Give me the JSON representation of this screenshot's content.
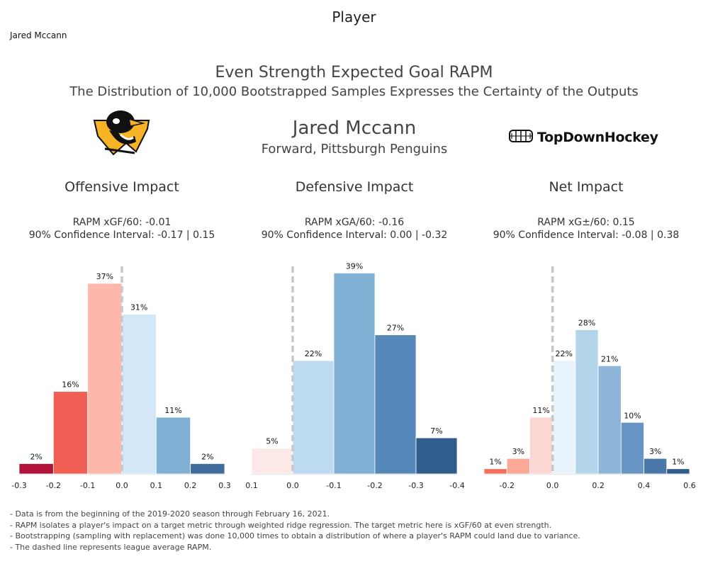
{
  "page": {
    "title": "Player",
    "player_select": "Jared Mccann",
    "main_title": "Even Strength Expected Goal RAPM",
    "subtitle": "The Distribution of 10,000 Bootstrapped Samples Expresses the Certainty of the Outputs",
    "player_name": "Jared Mccann",
    "player_role": "Forward, Pittsburgh Penguins",
    "brand": "TopDownHockey"
  },
  "colors": {
    "reds": [
      "#b01238",
      "#f05e54",
      "#fdb8ab",
      "#fde1df",
      "#fbd6d3"
    ],
    "blues": [
      "#d3e7f7",
      "#80b1d5",
      "#3c6fa3",
      "#2b5a8a"
    ]
  },
  "panels": [
    {
      "title": "Offensive Impact",
      "stat_line": "RAPM xGF/60: -0.01",
      "ci_line": "90% Confidence Interval: -0.17 | 0.15"
    },
    {
      "title": "Defensive Impact",
      "stat_line": "RAPM xGA/60: -0.16",
      "ci_line": "90% Confidence Interval:  0.00 | -0.32"
    },
    {
      "title": "Net Impact",
      "stat_line": "RAPM xG±/60: 0.15",
      "ci_line": "90% Confidence Interval: -0.08 | 0.38"
    }
  ],
  "chart_data": [
    {
      "type": "bar",
      "title": "Offensive Impact",
      "bin_edges": [
        -0.3,
        -0.2,
        -0.1,
        0.0,
        0.1,
        0.2,
        0.3
      ],
      "values": [
        2,
        16,
        37,
        31,
        11,
        2
      ],
      "labels": [
        "2%",
        "16%",
        "37%",
        "31%",
        "11%",
        "2%"
      ],
      "colors": [
        "#b01238",
        "#f05e54",
        "#fdb8ab",
        "#d3e7f7",
        "#80b1d5",
        "#3f6e9e"
      ],
      "xticks": [
        "-0.3",
        "-0.2",
        "-0.1",
        "0.0",
        "0.1",
        "0.2",
        "0.3"
      ],
      "reference_line": 0.0,
      "reversed_axis": false
    },
    {
      "type": "bar",
      "title": "Defensive Impact",
      "bin_edges": [
        0.1,
        0.0,
        -0.1,
        -0.2,
        -0.3,
        -0.4
      ],
      "values": [
        5,
        22,
        39,
        27,
        7
      ],
      "labels": [
        "5%",
        "22%",
        "39%",
        "27%",
        "7%"
      ],
      "colors": [
        "#fde8e8",
        "#bcdaf0",
        "#80b1d5",
        "#5588b8",
        "#2f5d8c"
      ],
      "xticks": [
        "0.1",
        "0.0",
        "-0.1",
        "-0.2",
        "-0.3",
        "-0.4"
      ],
      "reference_line": 0.0,
      "reversed_axis": true
    },
    {
      "type": "bar",
      "title": "Net Impact",
      "bin_edges": [
        -0.3,
        -0.2,
        -0.1,
        0.0,
        0.1,
        0.2,
        0.3,
        0.4,
        0.5,
        0.6
      ],
      "values": [
        1,
        3,
        11,
        22,
        28,
        21,
        10,
        3,
        1
      ],
      "labels": [
        "1%",
        "3%",
        "11%",
        "22%",
        "28%",
        "21%",
        "10%",
        "3%",
        "1%"
      ],
      "colors": [
        "#f26f5c",
        "#fca896",
        "#fdd7d4",
        "#e9f3fb",
        "#b4d4ea",
        "#8cb5d8",
        "#6795c4",
        "#4a78aa",
        "#2f5d8c"
      ],
      "xticks": [
        "-0.2",
        "0.0",
        "0.2",
        "0.4",
        "0.6"
      ],
      "xtick_values": [
        -0.2,
        0.0,
        0.2,
        0.4,
        0.6
      ],
      "reference_line": 0.0,
      "reversed_axis": false
    }
  ],
  "footnotes": [
    "- Data is from the beginning of the 2019-2020 season through February 16, 2021.",
    "- RAPM isolates a player's impact on a target metric through weighted ridge regression. The target metric here is xGF/60 at even strength.",
    "- Bootstrapping (sampling with replacement) was done 10,000 times to obtain a distribution of where a player's RAPM could land due to variance.",
    "- The dashed line represents league average RAPM."
  ]
}
